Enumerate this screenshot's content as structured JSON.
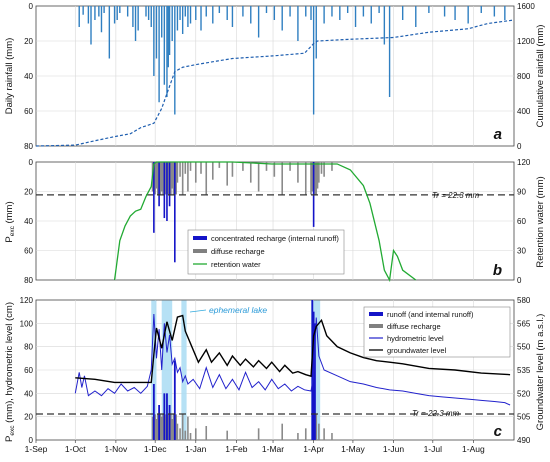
{
  "x_axis": {
    "months": [
      "1-Sep",
      "1-Oct",
      "1-Nov",
      "1-Dec",
      "1-Jan",
      "1-Feb",
      "1-Mar",
      "1-Apr",
      "1-May",
      "1-Jun",
      "1-Jul",
      "1-Aug"
    ],
    "month_days": [
      0,
      30,
      61,
      91,
      122,
      153,
      181,
      212,
      242,
      273,
      303,
      334
    ],
    "range": [
      0,
      365
    ]
  },
  "panels": [
    {
      "letter": "a",
      "left_label": "Daily rainfall (mm)",
      "right_label": "Cumulative rainfall (mm)",
      "left_ticks": [
        "0",
        "20",
        "40",
        "60",
        "80"
      ],
      "right_ticks": [
        "1600",
        "1200",
        "800",
        "400",
        "0"
      ]
    },
    {
      "letter": "b",
      "left_label_main": "P",
      "left_label_sub": "exc",
      "left_label_tail": " (mm)",
      "right_label": "Retention water  (mm)",
      "left_ticks": [
        "0",
        "20",
        "40",
        "60",
        "80"
      ],
      "right_ticks": [
        "120",
        "90",
        "60",
        "30",
        "0"
      ],
      "threshold_label": "Tr = 22.3 mm",
      "legend": [
        {
          "label": "concentrated recharge (internal runoff)",
          "kind": "bar",
          "color": "#1414c8"
        },
        {
          "label": "diffuse recharge",
          "kind": "bar",
          "color": "#808080"
        },
        {
          "label": "retention water",
          "kind": "line",
          "color": "#22aa33"
        }
      ]
    },
    {
      "letter": "c",
      "left_label_main": "P",
      "left_label_sub": "exc",
      "left_label_tail": " (mm),  hydrometric level (cm)",
      "right_label": "Groundwater level (m a.s.l.)",
      "left_ticks": [
        "120",
        "100",
        "80",
        "60",
        "40",
        "20",
        "0"
      ],
      "right_ticks": [
        "580",
        "565",
        "550",
        "535",
        "520",
        "505",
        "490"
      ],
      "threshold_label": "Tr = 22.3 mm",
      "annotation": "ephemeral lake",
      "legend": [
        {
          "label": "runoff (and internal runoff)",
          "kind": "bar",
          "color": "#1414c8"
        },
        {
          "label": "diffuse recharge",
          "kind": "bar",
          "color": "#808080"
        },
        {
          "label": "hydrometric level",
          "kind": "line",
          "color": "#2222cc"
        },
        {
          "label": "groundwater level",
          "kind": "line",
          "color": "#000000"
        }
      ]
    }
  ],
  "chart_data": [
    {
      "type": "bar",
      "panel": "a",
      "x_unit": "days since 1-Sep",
      "ylim_left": [
        80,
        0
      ],
      "ylim_right": [
        0,
        1600
      ],
      "series": [
        {
          "name": "Daily rainfall",
          "x": [
            33,
            36,
            40,
            42,
            45,
            48,
            50,
            52,
            56,
            60,
            62,
            64,
            70,
            74,
            76,
            78,
            84,
            86,
            88,
            90,
            92,
            94,
            96,
            98,
            100,
            101,
            102,
            104,
            106,
            108,
            110,
            112,
            114,
            116,
            118,
            122,
            126,
            130,
            135,
            140,
            146,
            150,
            158,
            164,
            170,
            176,
            182,
            188,
            194,
            200,
            206,
            210,
            212,
            214,
            220,
            226,
            232,
            238,
            244,
            250,
            256,
            262,
            266,
            270,
            280,
            290,
            300,
            312,
            320,
            330,
            340,
            350,
            358
          ],
          "y": [
            12,
            5,
            10,
            22,
            8,
            6,
            15,
            4,
            30,
            10,
            8,
            4,
            6,
            12,
            20,
            14,
            6,
            8,
            12,
            40,
            30,
            55,
            18,
            45,
            52,
            35,
            28,
            20,
            62,
            14,
            8,
            16,
            6,
            12,
            10,
            8,
            14,
            6,
            10,
            4,
            8,
            12,
            6,
            10,
            18,
            4,
            8,
            14,
            6,
            20,
            6,
            8,
            62,
            30,
            10,
            6,
            8,
            4,
            12,
            6,
            10,
            4,
            22,
            52,
            8,
            12,
            4,
            6,
            8,
            10,
            4,
            6,
            8
          ]
        },
        {
          "name": "Cumulative rainfall",
          "x": [
            0,
            30,
            45,
            61,
            72,
            80,
            90,
            96,
            100,
            106,
            112,
            122,
            150,
            181,
            205,
            212,
            215,
            240,
            273,
            300,
            330,
            345,
            365
          ],
          "y": [
            0,
            10,
            60,
            110,
            140,
            210,
            260,
            430,
            600,
            850,
            900,
            930,
            1000,
            1030,
            1060,
            1170,
            1200,
            1220,
            1240,
            1300,
            1340,
            1400,
            1440
          ]
        }
      ]
    },
    {
      "type": "bar",
      "panel": "b",
      "x_unit": "days since 1-Sep",
      "ylim_left": [
        80,
        0
      ],
      "ylim_right": [
        0,
        120
      ],
      "threshold": 22.3,
      "series": [
        {
          "name": "concentrated recharge (internal runoff)",
          "x": [
            90,
            94,
            98,
            100,
            102,
            106,
            212
          ],
          "y": [
            48,
            30,
            38,
            40,
            30,
            68,
            44
          ]
        },
        {
          "name": "diffuse recharge",
          "x": [
            89,
            91,
            92,
            93,
            95,
            96,
            97,
            99,
            101,
            103,
            104,
            105,
            107,
            108,
            110,
            112,
            114,
            116,
            118,
            122,
            126,
            130,
            135,
            140,
            146,
            150,
            158,
            164,
            170,
            176,
            182,
            188,
            194,
            200,
            206,
            210,
            211,
            213,
            214,
            215,
            216,
            218,
            220,
            226
          ],
          "y": [
            20,
            22,
            18,
            22,
            22,
            20,
            22,
            22,
            22,
            22,
            18,
            22,
            22,
            14,
            10,
            22,
            8,
            20,
            6,
            14,
            8,
            22,
            12,
            4,
            16,
            10,
            6,
            14,
            20,
            6,
            10,
            22,
            6,
            14,
            22,
            22,
            20,
            22,
            22,
            18,
            14,
            8,
            10,
            6
          ],
          "visible": true
        },
        {
          "name": "retention water",
          "x": [
            60,
            64,
            68,
            72,
            76,
            80,
            84,
            88,
            90,
            92,
            96,
            100,
            110,
            130,
            150,
            180,
            200,
            230,
            240,
            250,
            255,
            262,
            266,
            270,
            273,
            276,
            280,
            290
          ],
          "y": [
            0,
            40,
            55,
            65,
            70,
            72,
            85,
            95,
            118,
            120,
            120,
            120,
            120,
            120,
            120,
            118,
            118,
            118,
            112,
            96,
            78,
            40,
            10,
            0,
            30,
            24,
            10,
            0
          ]
        }
      ]
    },
    {
      "type": "line",
      "panel": "c",
      "x_unit": "days since 1-Sep",
      "ylim_left": [
        0,
        120
      ],
      "ylim_right": [
        490,
        580
      ],
      "threshold": 22.3,
      "shaded_periods": [
        [
          88,
          92
        ],
        [
          96,
          104
        ],
        [
          111,
          115
        ],
        [
          210,
          217
        ]
      ],
      "series": [
        {
          "name": "runoff (and internal runoff)",
          "x": [
            90,
            94,
            98,
            100,
            102,
            106,
            211,
            212,
            213
          ],
          "y": [
            48,
            30,
            40,
            40,
            30,
            68,
            120,
            110,
            100
          ]
        },
        {
          "name": "diffuse recharge",
          "x": [
            89,
            91,
            92,
            93,
            95,
            96,
            97,
            99,
            101,
            103,
            104,
            105,
            107,
            108,
            110,
            112,
            114,
            116,
            118,
            122,
            130,
            146,
            170,
            188,
            200,
            206,
            211,
            214,
            216,
            220,
            226
          ],
          "y": [
            20,
            22,
            18,
            22,
            22,
            20,
            22,
            22,
            22,
            22,
            18,
            22,
            22,
            14,
            10,
            22,
            8,
            20,
            6,
            10,
            12,
            8,
            10,
            14,
            6,
            10,
            22,
            22,
            14,
            10,
            6
          ]
        },
        {
          "name": "hydrometric level",
          "x": [
            30,
            33,
            35,
            37,
            40,
            45,
            50,
            55,
            60,
            65,
            70,
            75,
            80,
            85,
            88,
            90,
            92,
            94,
            96,
            98,
            100,
            102,
            104,
            106,
            108,
            110,
            112,
            114,
            116,
            120,
            125,
            130,
            135,
            140,
            145,
            150,
            155,
            160,
            165,
            170,
            175,
            180,
            185,
            190,
            195,
            200,
            205,
            210,
            212,
            214,
            216,
            220,
            230,
            240,
            250,
            260,
            270,
            280,
            290,
            300,
            310,
            320,
            330,
            340,
            350,
            358,
            362
          ],
          "y": [
            40,
            58,
            45,
            55,
            38,
            42,
            38,
            44,
            40,
            48,
            42,
            45,
            40,
            46,
            60,
            108,
            70,
            95,
            60,
            100,
            75,
            90,
            65,
            70,
            58,
            62,
            50,
            55,
            48,
            52,
            44,
            62,
            45,
            56,
            44,
            52,
            43,
            58,
            45,
            50,
            43,
            52,
            44,
            48,
            42,
            46,
            43,
            42,
            55,
            105,
            72,
            60,
            55,
            50,
            48,
            45,
            43,
            42,
            40,
            38,
            37,
            36,
            35,
            34,
            33,
            32,
            30
          ]
        },
        {
          "name": "groundwater level",
          "x": [
            30,
            45,
            60,
            75,
            88,
            90,
            92,
            96,
            100,
            104,
            108,
            112,
            114,
            118,
            124,
            130,
            134,
            140,
            146,
            150,
            156,
            160,
            166,
            170,
            176,
            180,
            186,
            190,
            196,
            200,
            206,
            210,
            212,
            214,
            218,
            222,
            230,
            240,
            250,
            260,
            270,
            280,
            300,
            320,
            340,
            362
          ],
          "y": [
            530,
            529,
            527,
            527,
            527,
            545,
            562,
            549,
            566,
            554,
            569,
            570,
            560,
            552,
            540,
            548,
            540,
            546,
            538,
            544,
            538,
            542,
            537,
            541,
            536,
            540,
            534,
            538,
            533,
            534,
            532,
            531,
            557,
            563,
            567,
            557,
            550,
            546,
            543,
            541,
            540,
            539,
            536,
            535,
            533,
            532
          ]
        }
      ]
    }
  ]
}
